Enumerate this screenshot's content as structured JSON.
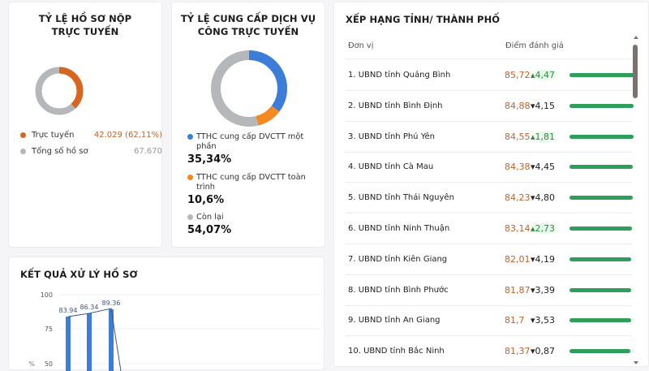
{
  "online_submission": {
    "title": "TỶ LỆ HỒ SƠ NỘP TRỰC TUYẾN",
    "legend": [
      {
        "label": "Trực tuyến",
        "value": "42.029 (62,11%)",
        "color": "#d9661f"
      },
      {
        "label": "Tổng số hồ sơ",
        "value": "67.670",
        "color": "#b5b8bb"
      }
    ]
  },
  "public_service": {
    "title": "TỶ LỆ CUNG CẤP DỊCH VỤ CÔNG TRỰC TUYẾN",
    "legend": [
      {
        "label": "TTHC cung cấp DVCTT một phần",
        "value": "35,34%",
        "color": "#3b7dd8"
      },
      {
        "label": "TTHC cung cấp DVCTT toàn trình",
        "value": "10,6%",
        "color": "#f5891f"
      },
      {
        "label": "Còn lại",
        "value": "54,07%",
        "color": "#b5b8bb"
      }
    ]
  },
  "processing_results": {
    "title": "KẾT QUẢ XỬ LÝ HỒ SƠ",
    "y_axis_label": "%"
  },
  "ranking": {
    "title": "XẾP HẠNG TỈNH/ THÀNH PHỐ",
    "columns": [
      "Đơn vị",
      "Điểm đánh giá"
    ],
    "rows": [
      {
        "name": "1. UBND tỉnh Quảng Bình",
        "score": "85,72",
        "delta": "4,47",
        "dir": "up",
        "pct": 86
      },
      {
        "name": "2. UBND tỉnh Bình Định",
        "score": "84,88",
        "delta": "4,15",
        "dir": "down",
        "pct": 85
      },
      {
        "name": "3. UBND tỉnh Phú Yên",
        "score": "84,55",
        "delta": "1,81",
        "dir": "up",
        "pct": 85
      },
      {
        "name": "4. UBND tỉnh Cà Mau",
        "score": "84,38",
        "delta": "4,45",
        "dir": "down",
        "pct": 84
      },
      {
        "name": "5. UBND tỉnh Thái Nguyên",
        "score": "84,23",
        "delta": "4,80",
        "dir": "down",
        "pct": 84
      },
      {
        "name": "6. UBND tỉnh Ninh Thuận",
        "score": "83,14",
        "delta": "2,73",
        "dir": "up",
        "pct": 83
      },
      {
        "name": "7. UBND tỉnh Kiên Giang",
        "score": "82,01",
        "delta": "4,19",
        "dir": "down",
        "pct": 82
      },
      {
        "name": "8. UBND tỉnh Bình Phước",
        "score": "81,87",
        "delta": "3,39",
        "dir": "down",
        "pct": 82
      },
      {
        "name": "9. UBND tỉnh An Giang",
        "score": "81,7",
        "delta": "3,53",
        "dir": "down",
        "pct": 82
      },
      {
        "name": "10. UBND tỉnh Bắc Ninh",
        "score": "81,37",
        "delta": "0,87",
        "dir": "down",
        "pct": 81
      }
    ]
  },
  "chart_data": [
    {
      "type": "pie",
      "title": "TỶ LỆ HỒ SƠ NỘP TRỰC TUYẾN",
      "categories": [
        "Trực tuyến",
        "Tổng số hồ sơ"
      ],
      "values": [
        42029,
        67670
      ],
      "labels": [
        "42.029 (62,11%)",
        "67.670"
      ]
    },
    {
      "type": "pie",
      "title": "TỶ LỆ CUNG CẤP DỊCH VỤ CÔNG TRỰC TUYẾN",
      "categories": [
        "TTHC cung cấp DVCTT một phần",
        "TTHC cung cấp DVCTT toàn trình",
        "Còn lại"
      ],
      "values": [
        35.34,
        10.6,
        54.07
      ]
    },
    {
      "type": "bar",
      "title": "KẾT QUẢ XỬ LÝ HỒ SƠ",
      "ylabel": "%",
      "ylim": [
        0,
        100
      ],
      "yticks": [
        50,
        75,
        100
      ],
      "values": [
        83.94,
        86.34,
        89.36
      ],
      "line_overlay": true,
      "grid": true
    }
  ]
}
